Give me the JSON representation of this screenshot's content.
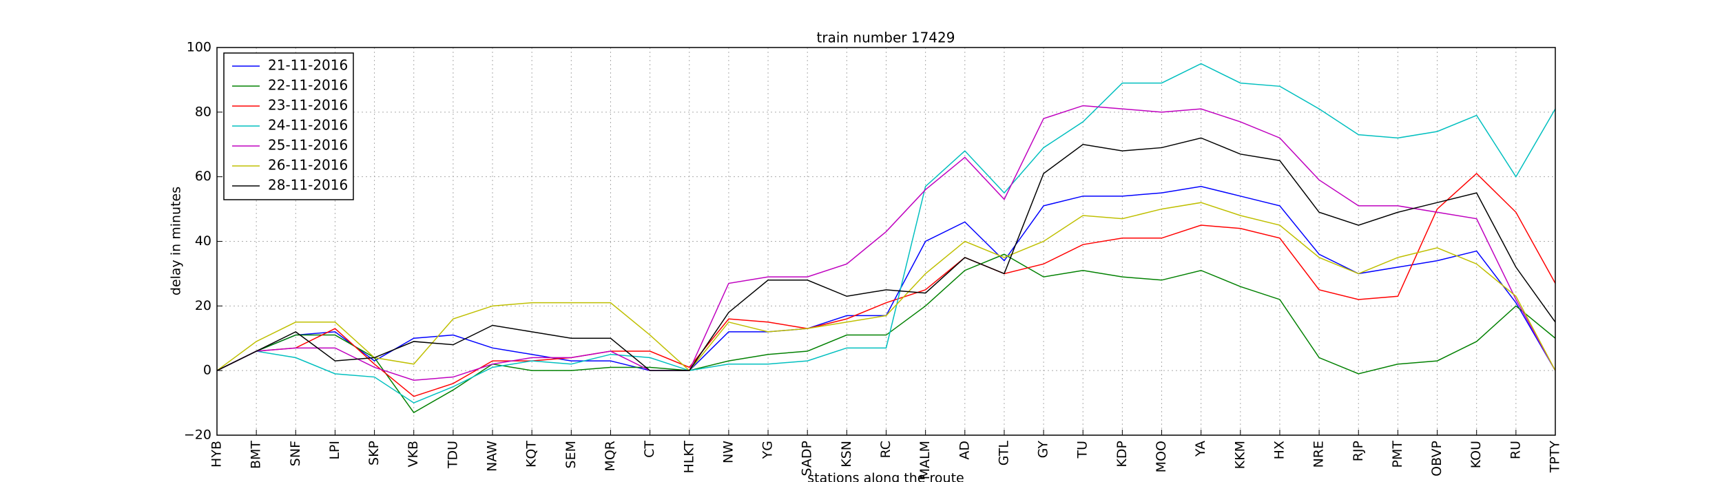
{
  "chart_data": {
    "type": "line",
    "title": "train number 17429",
    "x_label": "stations along the route",
    "y_label": "delay in minutes",
    "categories": [
      "HYB",
      "BMT",
      "SNF",
      "LPI",
      "SKP",
      "VKB",
      "TDU",
      "NAW",
      "KQT",
      "SEM",
      "MQR",
      "CT",
      "HLKT",
      "NW",
      "YG",
      "SADP",
      "KSN",
      "RC",
      "MALM",
      "AD",
      "GTL",
      "GY",
      "TU",
      "KDP",
      "MOO",
      "YA",
      "KKM",
      "HX",
      "NRE",
      "RJP",
      "PMT",
      "OBVP",
      "KOU",
      "RU",
      "TPTY"
    ],
    "series": [
      {
        "name": "21-11-2016",
        "color": "#0000ff",
        "values": [
          0,
          6,
          11,
          12,
          3,
          10,
          11,
          7,
          5,
          3,
          3,
          0,
          0,
          12,
          12,
          13,
          17,
          17,
          40,
          46,
          34,
          51,
          54,
          54,
          55,
          57,
          54,
          51,
          36,
          30,
          32,
          34,
          37,
          21,
          0
        ]
      },
      {
        "name": "22-11-2016",
        "color": "#008000",
        "values": [
          0,
          6,
          11,
          11,
          4,
          -13,
          -6,
          2,
          0,
          0,
          1,
          1,
          0,
          3,
          5,
          6,
          11,
          11,
          20,
          31,
          36,
          29,
          31,
          29,
          28,
          31,
          26,
          22,
          4,
          -1,
          2,
          3,
          9,
          20,
          10
        ]
      },
      {
        "name": "23-11-2016",
        "color": "#ff0000",
        "values": [
          0,
          6,
          7,
          13,
          2,
          -8,
          -4,
          3,
          3,
          4,
          6,
          6,
          1,
          16,
          15,
          13,
          16,
          21,
          25,
          35,
          30,
          33,
          39,
          41,
          41,
          45,
          44,
          41,
          25,
          22,
          23,
          50,
          61,
          49,
          27
        ]
      },
      {
        "name": "24-11-2016",
        "color": "#00bfbf",
        "values": [
          0,
          6,
          4,
          -1,
          -2,
          -10,
          -5,
          1,
          3,
          2,
          5,
          4,
          0,
          2,
          2,
          3,
          7,
          7,
          57,
          68,
          55,
          69,
          77,
          89,
          89,
          95,
          89,
          88,
          81,
          73,
          72,
          74,
          79,
          60,
          81
        ]
      },
      {
        "name": "25-11-2016",
        "color": "#bf00bf",
        "values": [
          0,
          6,
          7,
          7,
          1,
          -3,
          -2,
          2,
          4,
          4,
          6,
          0,
          0,
          27,
          29,
          29,
          33,
          43,
          56,
          66,
          53,
          78,
          82,
          81,
          80,
          81,
          77,
          72,
          59,
          51,
          51,
          49,
          47,
          22,
          0
        ]
      },
      {
        "name": "26-11-2016",
        "color": "#bfbf00",
        "values": [
          0,
          9,
          15,
          15,
          4,
          2,
          16,
          20,
          21,
          21,
          21,
          11,
          0,
          15,
          12,
          13,
          15,
          17,
          30,
          40,
          35,
          40,
          48,
          47,
          50,
          52,
          48,
          45,
          35,
          30,
          35,
          38,
          33,
          23,
          0
        ]
      },
      {
        "name": "28-11-2016",
        "color": "#000000",
        "values": [
          0,
          6,
          12,
          3,
          4,
          9,
          8,
          14,
          12,
          10,
          10,
          0,
          0,
          18,
          28,
          28,
          23,
          25,
          24,
          35,
          30,
          61,
          70,
          68,
          69,
          72,
          67,
          65,
          49,
          45,
          49,
          52,
          55,
          32,
          15
        ]
      }
    ],
    "ylim": [
      -20,
      100
    ],
    "yticks": [
      {
        "value": -20,
        "label": "−20"
      },
      0,
      20,
      40,
      60,
      80,
      100
    ],
    "grid": true,
    "legend": "upper left"
  }
}
